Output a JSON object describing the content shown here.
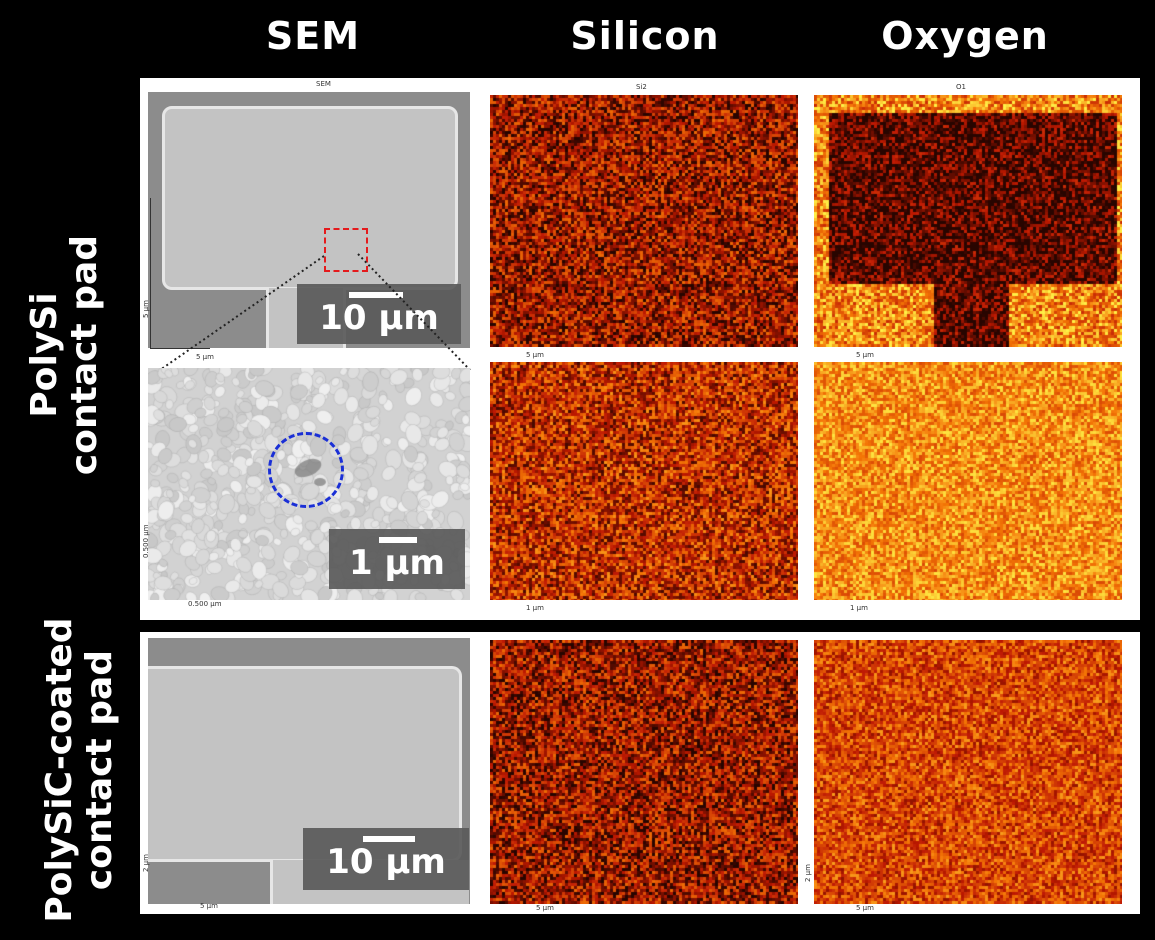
{
  "columns": {
    "sem": "SEM",
    "silicon": "Silicon",
    "oxygen": "Oxygen"
  },
  "rows": {
    "polysi": [
      "PolySi",
      "contact pad"
    ],
    "polysic": [
      "PolySiC-coated",
      "contact pad"
    ]
  },
  "panel_titles": {
    "sem": "SEM",
    "si": "Si2",
    "o": "O1"
  },
  "axis_labels": {
    "five_um": "5 µm",
    "one_um": "1 µm",
    "half_um": "0.500 µm",
    "two_um": "2 µm"
  },
  "scale_bars": {
    "top": "10 µm",
    "zoom": "1 µm",
    "bottom": "10 µm"
  },
  "colors": {
    "zoom_box": "#e41a1c",
    "defect_circle": "#1a2fd6",
    "map_dark": "#2a0500",
    "map_red": "#c0200a",
    "map_orange": "#f07a10",
    "map_yellow": "#ffe040"
  }
}
